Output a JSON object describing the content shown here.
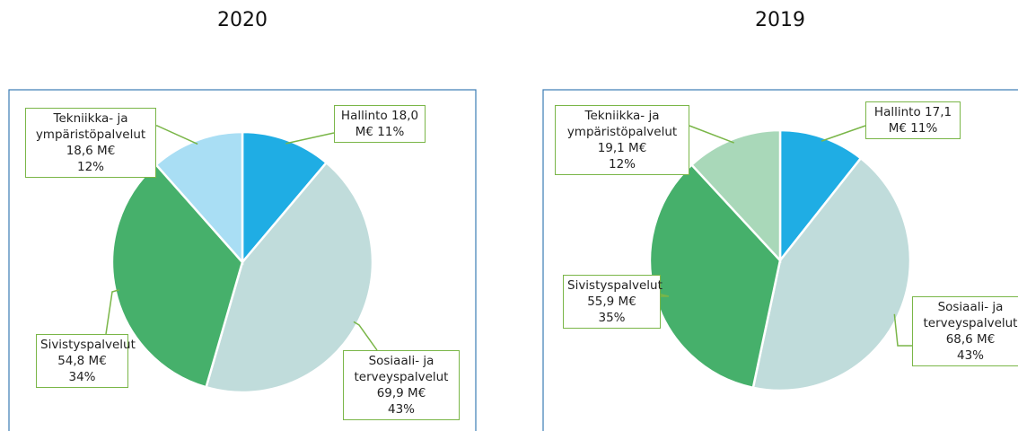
{
  "chart_data": [
    {
      "type": "pie",
      "title": "2020",
      "categories": [
        "Hallinto",
        "Sosiaali- ja terveyspalvelut",
        "Sivistyspalvelut",
        "Tekniikka- ja ympäristöpalvelut"
      ],
      "values": [
        18.0,
        69.9,
        54.8,
        18.6
      ],
      "value_labels": [
        "18,0 M€",
        "69,9 M€",
        "54,8 M€",
        "18,6 M€"
      ],
      "shares": [
        11,
        43,
        34,
        12
      ],
      "share_labels": [
        "11%",
        "43%",
        "34%",
        "12%"
      ],
      "colors": [
        "#1fade4",
        "#c0dcdb",
        "#46b06b",
        "#a9def4"
      ]
    },
    {
      "type": "pie",
      "title": "2019",
      "categories": [
        "Hallinto",
        "Sosiaali- ja terveyspalvelut",
        "Sivistyspalvelut",
        "Tekniikka- ja ympäristöpalvelut"
      ],
      "values": [
        17.1,
        68.6,
        55.9,
        19.1
      ],
      "value_labels": [
        "17,1 M€",
        "68,6 M€",
        "55,9 M€",
        "19,1 M€"
      ],
      "shares": [
        11,
        43,
        35,
        12
      ],
      "share_labels": [
        "11%",
        "43%",
        "35%",
        "12%"
      ],
      "colors": [
        "#1fade4",
        "#c0dcdb",
        "#46b06b",
        "#a9d8b9"
      ]
    }
  ]
}
